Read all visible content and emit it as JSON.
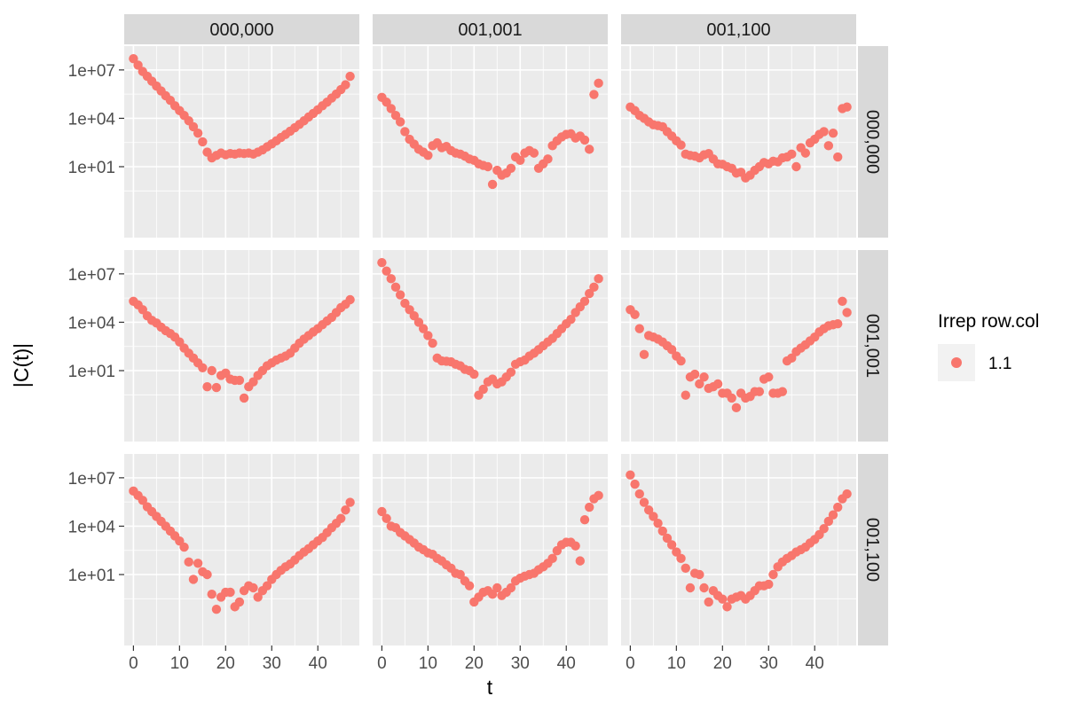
{
  "chart_data": {
    "type": "scatter",
    "facet_columns": [
      "000,000",
      "001,001",
      "001,100"
    ],
    "facet_rows": [
      "000,000",
      "001,001",
      "001,100"
    ],
    "xlabel": "t",
    "ylabel": "|C(t)|",
    "y_scale": "log10",
    "xlim": [
      -2,
      49
    ],
    "ylim": [
      0.0004,
      300000000
    ],
    "x_ticks": [
      0,
      10,
      20,
      30,
      40
    ],
    "x_tick_labels": [
      "0",
      "10",
      "20",
      "30",
      "40"
    ],
    "y_ticks": [
      10,
      10000,
      10000000
    ],
    "y_tick_labels": [
      "1e+01",
      "1e+04",
      "1e+07"
    ],
    "grid": true,
    "legend": {
      "title": "Irrep row.col",
      "position": "right",
      "entries": [
        {
          "label": "1.1",
          "color": "#F8766D"
        }
      ]
    },
    "point_color": "#F8766D",
    "panels": [
      {
        "row": 0,
        "col": 0,
        "x": [
          0,
          1,
          2,
          3,
          4,
          5,
          6,
          7,
          8,
          9,
          10,
          11,
          12,
          13,
          14,
          15,
          16,
          17,
          18,
          19,
          20,
          21,
          22,
          23,
          24,
          25,
          26,
          27,
          28,
          29,
          30,
          31,
          32,
          33,
          34,
          35,
          36,
          37,
          38,
          39,
          40,
          41,
          42,
          43,
          44,
          45,
          46,
          47
        ],
        "y": [
          50000000.0,
          20000000.0,
          8000000.0,
          4000000.0,
          2000000.0,
          1000000.0,
          500000.0,
          250000.0,
          130000.0,
          60000.0,
          30000.0,
          15000.0,
          7000.0,
          3000.0,
          1200.0,
          350,
          80,
          35,
          50,
          70,
          55,
          65,
          60,
          70,
          65,
          70,
          60,
          80,
          110,
          170,
          260,
          400,
          650,
          1000.0,
          1600.0,
          2600.0,
          4200.0,
          7000.0,
          12000.0,
          20000.0,
          34000.0,
          60000.0,
          100000.0,
          180000.0,
          320000.0,
          600000.0,
          1200000.0,
          4000000.0
        ]
      },
      {
        "row": 0,
        "col": 1,
        "x": [
          0,
          1,
          2,
          3,
          4,
          5,
          6,
          7,
          8,
          9,
          10,
          11,
          12,
          13,
          14,
          15,
          16,
          17,
          18,
          19,
          20,
          21,
          22,
          23,
          24,
          25,
          26,
          27,
          28,
          29,
          30,
          31,
          32,
          33,
          34,
          35,
          36,
          37,
          38,
          39,
          40,
          41,
          42,
          43,
          44,
          45,
          46,
          47
        ],
        "y": [
          200000.0,
          100000.0,
          40000.0,
          15000.0,
          6000.0,
          1500.0,
          500,
          250,
          120,
          80,
          50,
          200,
          300,
          150,
          180,
          100,
          70,
          60,
          45,
          30,
          25,
          15,
          12,
          10,
          0.8,
          6,
          3,
          4,
          8,
          40,
          25,
          70,
          100,
          70,
          8,
          15,
          30,
          200,
          400,
          700,
          1000.0,
          1100.0,
          600,
          800,
          450,
          120,
          300000.0,
          1500000.0
        ]
      },
      {
        "row": 0,
        "col": 2,
        "x": [
          0,
          1,
          2,
          3,
          4,
          5,
          6,
          7,
          8,
          9,
          10,
          11,
          12,
          13,
          14,
          15,
          16,
          17,
          18,
          19,
          20,
          21,
          22,
          23,
          24,
          25,
          26,
          27,
          28,
          29,
          30,
          31,
          32,
          33,
          34,
          35,
          36,
          37,
          38,
          39,
          40,
          41,
          42,
          43,
          44,
          45,
          46,
          47
        ],
        "y": [
          50000.0,
          30000.0,
          15000.0,
          10000.0,
          6000.0,
          4000.0,
          3500.0,
          3000.0,
          1500.0,
          800,
          400,
          220,
          60,
          50,
          45,
          35,
          55,
          65,
          30,
          15,
          14,
          10,
          8,
          4,
          4.5,
          2,
          3,
          6,
          10,
          18,
          15,
          22,
          20,
          35,
          40,
          60,
          10,
          150,
          70,
          300,
          500,
          1000.0,
          1500.0,
          200,
          1200.0,
          40,
          40000.0,
          50000.0
        ]
      },
      {
        "row": 1,
        "col": 0,
        "x": [
          0,
          1,
          2,
          3,
          4,
          5,
          6,
          7,
          8,
          9,
          10,
          11,
          12,
          13,
          14,
          15,
          16,
          17,
          18,
          19,
          20,
          21,
          22,
          23,
          24,
          25,
          26,
          27,
          28,
          29,
          30,
          31,
          32,
          33,
          34,
          35,
          36,
          37,
          38,
          39,
          40,
          41,
          42,
          43,
          44,
          45,
          46,
          47
        ],
        "y": [
          200000.0,
          120000.0,
          60000.0,
          25000.0,
          13000.0,
          9000.0,
          5000.0,
          3000.0,
          2000.0,
          1200.0,
          600,
          250,
          120,
          60,
          30,
          15,
          1.0,
          10,
          0.9,
          5,
          7,
          3,
          2.5,
          2.5,
          0.2,
          1,
          2,
          5,
          10,
          20,
          30,
          45,
          60,
          80,
          120,
          250,
          500,
          900,
          1500.0,
          2500.0,
          4000.0,
          7000.0,
          12000.0,
          20000.0,
          40000.0,
          80000.0,
          130000.0,
          250000.0
        ]
      },
      {
        "row": 1,
        "col": 1,
        "x": [
          0,
          1,
          2,
          3,
          4,
          5,
          6,
          7,
          8,
          9,
          10,
          11,
          12,
          13,
          14,
          15,
          16,
          17,
          18,
          19,
          20,
          21,
          22,
          23,
          24,
          25,
          26,
          27,
          28,
          29,
          30,
          31,
          32,
          33,
          34,
          35,
          36,
          37,
          38,
          39,
          40,
          41,
          42,
          43,
          44,
          45,
          46,
          47
        ],
        "y": [
          50000000.0,
          15000000.0,
          5000000.0,
          1500000.0,
          500000.0,
          150000.0,
          60000.0,
          25000.0,
          10000.0,
          4000.0,
          1500.0,
          500,
          60,
          40,
          38,
          35,
          25,
          20,
          12,
          10,
          6,
          0.3,
          0.7,
          2,
          3,
          1.5,
          2,
          4,
          8,
          25,
          35,
          45,
          80,
          120,
          200,
          350,
          600,
          1000.0,
          2000.0,
          4000.0,
          8000.0,
          15000.0,
          40000.0,
          90000.0,
          200000.0,
          600000.0,
          1500000.0,
          5000000.0
        ]
      },
      {
        "row": 1,
        "col": 2,
        "x": [
          0,
          1,
          2,
          3,
          4,
          5,
          6,
          7,
          8,
          9,
          10,
          11,
          12,
          13,
          14,
          15,
          16,
          17,
          18,
          19,
          20,
          21,
          22,
          23,
          24,
          25,
          26,
          27,
          28,
          29,
          30,
          31,
          32,
          33,
          34,
          35,
          36,
          37,
          38,
          39,
          40,
          41,
          42,
          43,
          44,
          45,
          46,
          47
        ],
        "y": [
          60000.0,
          30000.0,
          4000.0,
          100,
          1500.0,
          1200.0,
          900,
          600,
          350,
          200,
          80,
          40,
          0.3,
          4,
          6,
          1.5,
          4,
          0.8,
          1,
          1.5,
          0.4,
          0.4,
          0.2,
          0.05,
          0.4,
          0.2,
          0.25,
          0.5,
          0.5,
          3,
          4,
          0.4,
          0.4,
          0.5,
          40,
          60,
          150,
          250,
          400,
          700,
          1200.0,
          2500.0,
          4000.0,
          6000.0,
          7000.0,
          8000.0,
          200000.0,
          40000.0
        ]
      },
      {
        "row": 2,
        "col": 0,
        "x": [
          0,
          1,
          2,
          3,
          4,
          5,
          6,
          7,
          8,
          9,
          10,
          11,
          12,
          13,
          14,
          15,
          16,
          17,
          18,
          19,
          20,
          21,
          22,
          23,
          24,
          25,
          26,
          27,
          28,
          29,
          30,
          31,
          32,
          33,
          34,
          35,
          36,
          37,
          38,
          39,
          40,
          41,
          42,
          43,
          44,
          45,
          46,
          47
        ],
        "y": [
          1500000.0,
          800000.0,
          400000.0,
          160000.0,
          80000.0,
          40000.0,
          20000.0,
          10000.0,
          5000.0,
          2500.0,
          1200.0,
          500,
          60,
          5,
          50,
          15,
          10,
          0.6,
          0.07,
          0.4,
          0.8,
          0.8,
          0.1,
          0.2,
          1,
          2,
          1.5,
          0.4,
          1,
          2,
          5,
          10,
          18,
          30,
          45,
          80,
          150,
          250,
          400,
          700,
          1200.0,
          2000.0,
          4000.0,
          8000.0,
          15000.0,
          30000.0,
          100000.0,
          300000.0
        ]
      },
      {
        "row": 2,
        "col": 1,
        "x": [
          0,
          1,
          2,
          3,
          4,
          5,
          6,
          7,
          8,
          9,
          10,
          11,
          12,
          13,
          14,
          15,
          16,
          17,
          18,
          19,
          20,
          21,
          22,
          23,
          24,
          25,
          26,
          27,
          28,
          29,
          30,
          31,
          32,
          33,
          34,
          35,
          36,
          37,
          38,
          39,
          40,
          41,
          42,
          43,
          44,
          45,
          46,
          47
        ],
        "y": [
          80000.0,
          30000.0,
          10000.0,
          8000.0,
          4000.0,
          2500.0,
          1500.0,
          900,
          500,
          350,
          220,
          180,
          100,
          70,
          40,
          25,
          12,
          10,
          4,
          2,
          0.2,
          0.4,
          0.8,
          1,
          0.6,
          1.5,
          0.5,
          0.8,
          1.5,
          4,
          6,
          8,
          10,
          12,
          20,
          30,
          50,
          100,
          300,
          700,
          1000.0,
          1000.0,
          600,
          70,
          25000.0,
          150000.0,
          500000.0,
          800000.0
        ]
      },
      {
        "row": 2,
        "col": 2,
        "x": [
          0,
          1,
          2,
          3,
          4,
          5,
          6,
          7,
          8,
          9,
          10,
          11,
          12,
          13,
          14,
          15,
          16,
          17,
          18,
          19,
          20,
          21,
          22,
          23,
          24,
          25,
          26,
          27,
          28,
          29,
          30,
          31,
          32,
          33,
          34,
          35,
          36,
          37,
          38,
          39,
          40,
          41,
          42,
          43,
          44,
          45,
          46,
          47
        ],
        "y": [
          15000000.0,
          4000000.0,
          1000000.0,
          300000.0,
          100000.0,
          40000.0,
          15000.0,
          5000.0,
          1800.0,
          700,
          250,
          100,
          25,
          1.5,
          12,
          10,
          1.5,
          0.2,
          1,
          0.5,
          0.3,
          0.1,
          0.3,
          0.4,
          0.5,
          0.3,
          0.5,
          1,
          2,
          2,
          2.5,
          10,
          30,
          60,
          100,
          150,
          250,
          350,
          500,
          900,
          1500.0,
          3000.0,
          7000.0,
          20000.0,
          50000.0,
          150000.0,
          500000.0,
          1000000.0
        ]
      }
    ]
  }
}
